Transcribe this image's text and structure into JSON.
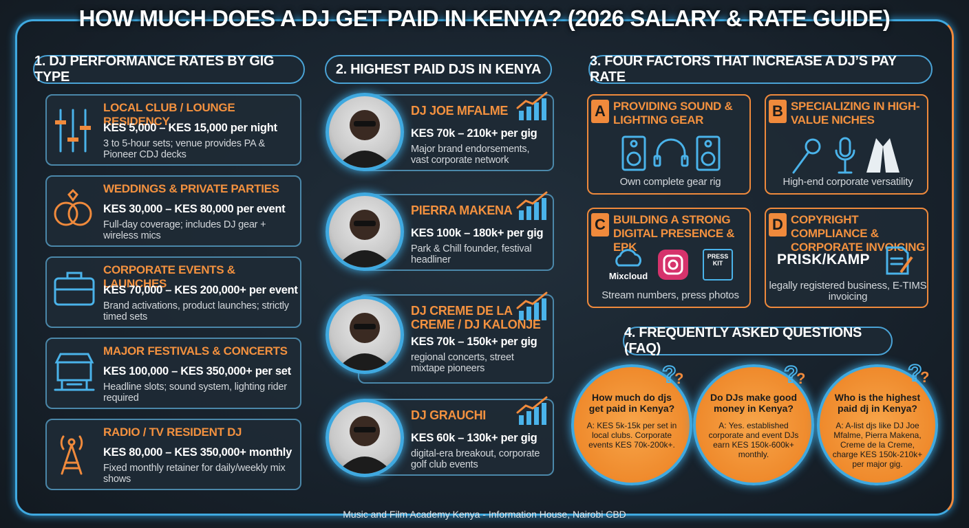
{
  "title": "HOW MUCH DOES A DJ GET PAID IN KENYA? (2026 SALARY & RATE GUIDE)",
  "rates": {
    "heading": "1. DJ PERFORMANCE RATES BY GIG TYPE",
    "items": [
      {
        "title": "LOCAL CLUB / LOUNGE RESIDENCY",
        "rate": "KES 5,000 – KES 15,000 per night",
        "note": "3 to 5-hour sets; venue provides PA & Pioneer CDJ decks"
      },
      {
        "title": "WEDDINGS & PRIVATE PARTIES",
        "rate": "KES 30,000 – KES 80,000 per event",
        "note": "Full-day coverage; includes DJ gear + wireless mics"
      },
      {
        "title": "CORPORATE EVENTS & LAUNCHES",
        "rate": "KES 70,000 – KES 200,000+ per event",
        "note": "Brand activations, product launches; strictly timed sets"
      },
      {
        "title": "MAJOR FESTIVALS & CONCERTS",
        "rate": "KES 100,000 – KES 350,000+ per set",
        "note": "Headline slots; sound system, lighting rider required"
      },
      {
        "title": "RADIO / TV RESIDENT DJ",
        "rate": "KES 80,000 – KES 350,000+ monthly",
        "note": "Fixed monthly retainer for daily/weekly mix shows"
      }
    ]
  },
  "djs": {
    "heading": "2. HIGHEST PAID DJS IN KENYA",
    "items": [
      {
        "name": "DJ JOE MFALME",
        "rate": "KES 70k – 210k+ per gig",
        "note": "Major brand endorsements, vast corporate network"
      },
      {
        "name": "PIERRA MAKENA",
        "rate": "KES 100k – 180k+ per gig",
        "note": "Park & Chill founder, festival headliner"
      },
      {
        "name": "DJ CREME DE LA CREME / DJ KALONJE",
        "rate": "KES 70k – 150k+ per gig",
        "note": "regional concerts, street mixtape pioneers"
      },
      {
        "name": "DJ GRAUCHI",
        "rate": "KES 60k – 130k+ per gig",
        "note": "digital-era breakout, corporate golf club events"
      }
    ]
  },
  "factors": {
    "heading": "3. FOUR FACTORS THAT INCREASE A DJ’S PAY RATE",
    "items": [
      {
        "letter": "A",
        "title": "PROVIDING SOUND & LIGHTING GEAR",
        "caption": "Own complete gear rig"
      },
      {
        "letter": "B",
        "title": "SPECIALIZING IN HIGH-VALUE NICHES",
        "caption": "High-end corporate versatility"
      },
      {
        "letter": "C",
        "title": "BUILDING A STRONG DIGITAL PRESENCE & EPK",
        "caption": "Stream numbers, press photos",
        "icon_labels": [
          "Mixcloud",
          "PRESS KIT"
        ]
      },
      {
        "letter": "D",
        "title": "COPYRIGHT COMPLIANCE & CORPORATE INVOICING",
        "caption": "legally registered business, E-TIMS invoicing",
        "icon_labels": [
          "PRISK/KAMP"
        ]
      }
    ]
  },
  "faq": {
    "heading": "4. FREQUENTLY ASKED QUESTIONS (FAQ)",
    "items": [
      {
        "question": "How much do djs get paid in Kenya?",
        "answer": "A: KES 5k-15k per set in local clubs. Corporate events KES 70k-200k+."
      },
      {
        "question": "Do DJs make good money in Kenya?",
        "answer": "A: Yes. established corporate and event DJs earn KES 150k-600k+ monthly."
      },
      {
        "question": "Who is the highest paid dj in Kenya?",
        "answer": "A: A-list djs like DJ Joe Mfalme, Pierra Makena, Creme de la Creme, charge KES 150k-210k+ per major gig."
      }
    ]
  },
  "footer": "Music and Film Academy Kenya - Information House, Nairobi CBD"
}
